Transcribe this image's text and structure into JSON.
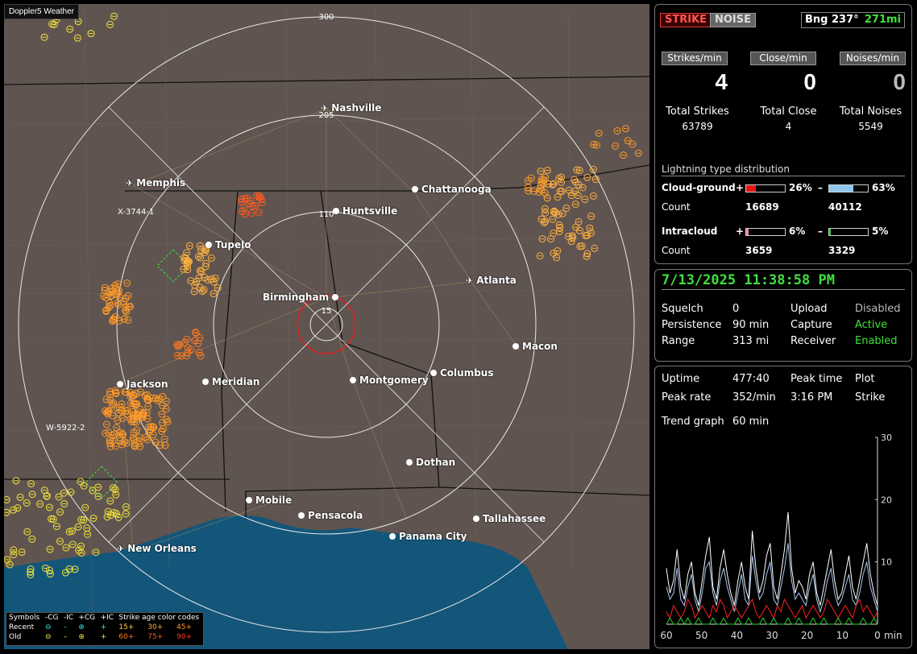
{
  "app": {
    "title": "Doppler5 Weather"
  },
  "map": {
    "range_labels": [
      "300",
      "205",
      "110",
      "15"
    ],
    "cities": [
      {
        "name": "Nashville",
        "type": "airport"
      },
      {
        "name": "Memphis",
        "type": "airport"
      },
      {
        "name": "Chattanooga",
        "type": "city"
      },
      {
        "name": "Huntsville",
        "type": "city"
      },
      {
        "name": "Tupelo",
        "type": "city"
      },
      {
        "name": "Atlanta",
        "type": "airport"
      },
      {
        "name": "Birmingham",
        "type": "city"
      },
      {
        "name": "Macon",
        "type": "city"
      },
      {
        "name": "Jackson",
        "type": "city"
      },
      {
        "name": "Meridian",
        "type": "city"
      },
      {
        "name": "Montgomery",
        "type": "city"
      },
      {
        "name": "Columbus",
        "type": "city"
      },
      {
        "name": "Dothan",
        "type": "city"
      },
      {
        "name": "Mobile",
        "type": "city"
      },
      {
        "name": "Pensacola",
        "type": "city"
      },
      {
        "name": "Tallahassee",
        "type": "city"
      },
      {
        "name": "Panama City",
        "type": "city"
      },
      {
        "name": "New Orleans",
        "type": "airport"
      }
    ],
    "storm_ids": [
      "X-3744-1",
      "W-5922-2"
    ]
  },
  "legend": {
    "headers": [
      "Symbols",
      "-CG",
      "-IC",
      "+CG",
      "+IC",
      "Strike age color codes"
    ],
    "recent_label": "Recent",
    "old_label": "Old",
    "recent_ages": [
      "15+",
      "30+",
      "45+"
    ],
    "old_ages": [
      "60+",
      "75+",
      "90+"
    ]
  },
  "controls": {
    "strike_label": "STRIKE",
    "noise_label": "NOISE",
    "bearing": "Bng 237°",
    "distance": "271mi"
  },
  "rates": {
    "strikes_label": "Strikes/min",
    "strikes_value": "4",
    "close_label": "Close/min",
    "close_value": "0",
    "noises_label": "Noises/min",
    "noises_value": "0"
  },
  "totals": {
    "strikes_label": "Total Strikes",
    "strikes_value": "63789",
    "close_label": "Total Close",
    "close_value": "4",
    "noises_label": "Total Noises",
    "noises_value": "5549"
  },
  "distribution": {
    "title": "Lightning type distribution",
    "count_label": "Count",
    "cloud_ground": {
      "label": "Cloud-ground",
      "pos_pct": "26%",
      "neg_pct": "63%",
      "pos_count": "16689",
      "neg_count": "40112",
      "pos_fraction": 0.26,
      "neg_fraction": 0.63
    },
    "intracloud": {
      "label": "Intracloud",
      "pos_pct": "6%",
      "neg_pct": "5%",
      "pos_count": "3659",
      "neg_count": "3329",
      "pos_fraction": 0.06,
      "neg_fraction": 0.05
    },
    "plus": "+",
    "minus": "–",
    "colors": {
      "cg_pos": "#e01818",
      "cg_neg": "#8ec8f0",
      "ic_pos": "#f08ab8",
      "ic_neg": "#22d022"
    }
  },
  "status": {
    "datetime": "7/13/2025 11:38:58 PM",
    "squelch_label": "Squelch",
    "squelch_value": "0",
    "persistence_label": "Persistence",
    "persistence_value": "90 min",
    "range_label": "Range",
    "range_value": "313 mi",
    "upload_label": "Upload",
    "upload_value": "Disabled",
    "capture_label": "Capture",
    "capture_value": "Active",
    "receiver_label": "Receiver",
    "receiver_value": "Enabled"
  },
  "trend": {
    "uptime_label": "Uptime",
    "uptime_value": "477:40",
    "peak_time_label": "Peak time",
    "peak_time_value": "3:16 PM",
    "plot_label": "Plot",
    "plot_value": "Strike",
    "peak_rate_label": "Peak rate",
    "peak_rate_value": "352/min",
    "graph_label": "Trend graph",
    "graph_value": "60 min"
  },
  "chart_data": {
    "type": "line",
    "title": "",
    "xlabel": "min",
    "ylabel": "",
    "x_ticks": [
      "60",
      "50",
      "40",
      "30",
      "20",
      "10",
      "0"
    ],
    "y_ticks": [
      "30",
      "20",
      "10"
    ],
    "xlim": [
      60,
      0
    ],
    "ylim": [
      0,
      30
    ],
    "series": [
      {
        "color": "#ffffff",
        "values": [
          9,
          5,
          7,
          12,
          6,
          4,
          8,
          10,
          5,
          3,
          7,
          11,
          14,
          6,
          4,
          9,
          12,
          8,
          5,
          3,
          7,
          10,
          6,
          4,
          15,
          9,
          5,
          7,
          11,
          13,
          6,
          4,
          8,
          12,
          18,
          9,
          5,
          7,
          6,
          4,
          8,
          10,
          5,
          3,
          6,
          9,
          12,
          7,
          4,
          5,
          8,
          11,
          6,
          4,
          7,
          10,
          13,
          8,
          5,
          3
        ]
      },
      {
        "color": "#a9c8f0",
        "values": [
          6,
          4,
          5,
          9,
          4,
          3,
          6,
          8,
          4,
          2,
          5,
          9,
          10,
          5,
          3,
          7,
          9,
          6,
          4,
          2,
          5,
          8,
          4,
          3,
          11,
          7,
          4,
          5,
          8,
          10,
          4,
          3,
          6,
          9,
          13,
          7,
          4,
          5,
          4,
          3,
          6,
          8,
          4,
          2,
          4,
          7,
          9,
          5,
          3,
          4,
          6,
          8,
          4,
          3,
          5,
          8,
          10,
          6,
          4,
          2
        ]
      },
      {
        "color": "#ff2020",
        "values": [
          2,
          1,
          3,
          2,
          1,
          2,
          4,
          3,
          1,
          2,
          3,
          2,
          1,
          3,
          2,
          4,
          3,
          1,
          2,
          3,
          2,
          1,
          2,
          3,
          4,
          2,
          1,
          2,
          3,
          2,
          1,
          3,
          2,
          4,
          3,
          2,
          1,
          2,
          3,
          1,
          2,
          3,
          2,
          1,
          2,
          4,
          3,
          2,
          1,
          2,
          3,
          2,
          1,
          3,
          4,
          2,
          3,
          2,
          1,
          2
        ]
      },
      {
        "color": "#22d022",
        "values": [
          0,
          1,
          0,
          0,
          1,
          0,
          1,
          0,
          0,
          1,
          0,
          0,
          0,
          1,
          0,
          0,
          1,
          0,
          0,
          0,
          1,
          0,
          0,
          1,
          0,
          0,
          0,
          1,
          0,
          0,
          1,
          0,
          0,
          0,
          1,
          0,
          0,
          1,
          0,
          0,
          0,
          1,
          0,
          0,
          1,
          0,
          0,
          0,
          1,
          0,
          0,
          1,
          0,
          0,
          0,
          1,
          0,
          0,
          1,
          0
        ]
      }
    ]
  }
}
